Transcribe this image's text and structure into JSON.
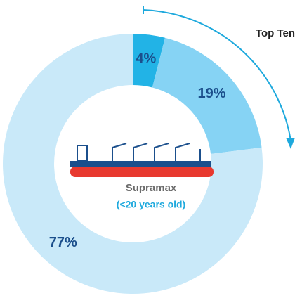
{
  "chart_data": {
    "type": "pie",
    "values": [
      4,
      19,
      77
    ],
    "value_labels": [
      "4%",
      "19%",
      "77%"
    ],
    "colors": [
      "#22b3e6",
      "#86d3f4",
      "#c9e9f9"
    ],
    "label_color": "#1b4f8c",
    "center_label": "Supramax",
    "center_sublabel": "(<20 years old)",
    "annotation": "Top Ten"
  }
}
